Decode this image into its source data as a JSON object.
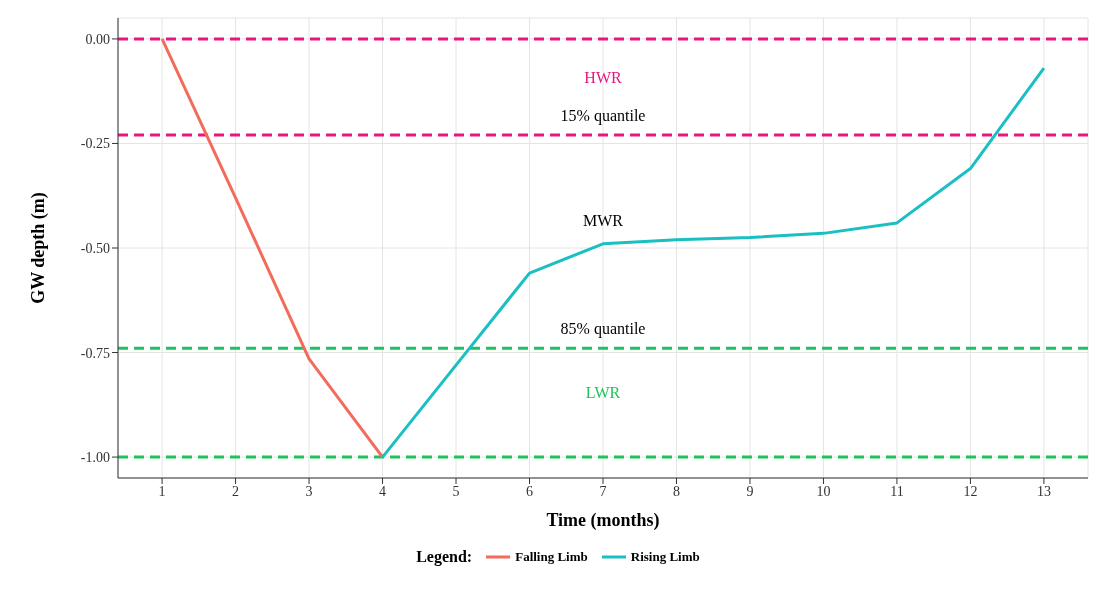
{
  "chart_data": {
    "type": "line",
    "xlabel": "Time (months)",
    "ylabel": "GW depth (m)",
    "legend_title": "Legend:",
    "series": [
      {
        "name": "Falling Limb",
        "color": "#f26b5b",
        "x": [
          1,
          2,
          3,
          4
        ],
        "values": [
          0,
          -0.38,
          -0.765,
          -1.0
        ]
      },
      {
        "name": "Rising Limb",
        "color": "#19bfc2",
        "x": [
          4,
          5,
          6,
          7,
          8,
          9,
          10,
          11,
          12,
          13
        ],
        "values": [
          -1.0,
          -0.78,
          -0.56,
          -0.49,
          -0.48,
          -0.475,
          -0.465,
          -0.44,
          -0.31,
          -0.07
        ]
      }
    ],
    "xlim": [
      0.4,
      13.6
    ],
    "xticks": [
      1,
      2,
      3,
      4,
      5,
      6,
      7,
      8,
      9,
      10,
      11,
      12,
      13
    ],
    "ylim": [
      -1.05,
      0.05
    ],
    "yticks": [
      {
        "value": -1,
        "label": "-1.00"
      },
      {
        "value": -0.75,
        "label": "-0.75"
      },
      {
        "value": -0.5,
        "label": "-0.50"
      },
      {
        "value": -0.25,
        "label": "-0.25"
      },
      {
        "value": 0,
        "label": "0.00"
      }
    ],
    "ref_lines": [
      {
        "axis": "y",
        "value": 0,
        "color": "#e8177f",
        "line_style": "dashed"
      },
      {
        "axis": "y",
        "value": -0.23,
        "label": "15% quantile",
        "color": "#e8177f",
        "line_style": "dashed"
      },
      {
        "axis": "y",
        "value": -0.74,
        "label": "85% quantile",
        "color": "#1dc45a",
        "line_style": "dashed"
      },
      {
        "axis": "y",
        "value": -1.0,
        "color": "#1dc45a",
        "line_style": "dashed"
      }
    ],
    "annotations": [
      "HWR",
      "MWR",
      "LWR"
    ],
    "grid": true,
    "legend": "bottom",
    "marker": "none",
    "line_style": "solid"
  }
}
